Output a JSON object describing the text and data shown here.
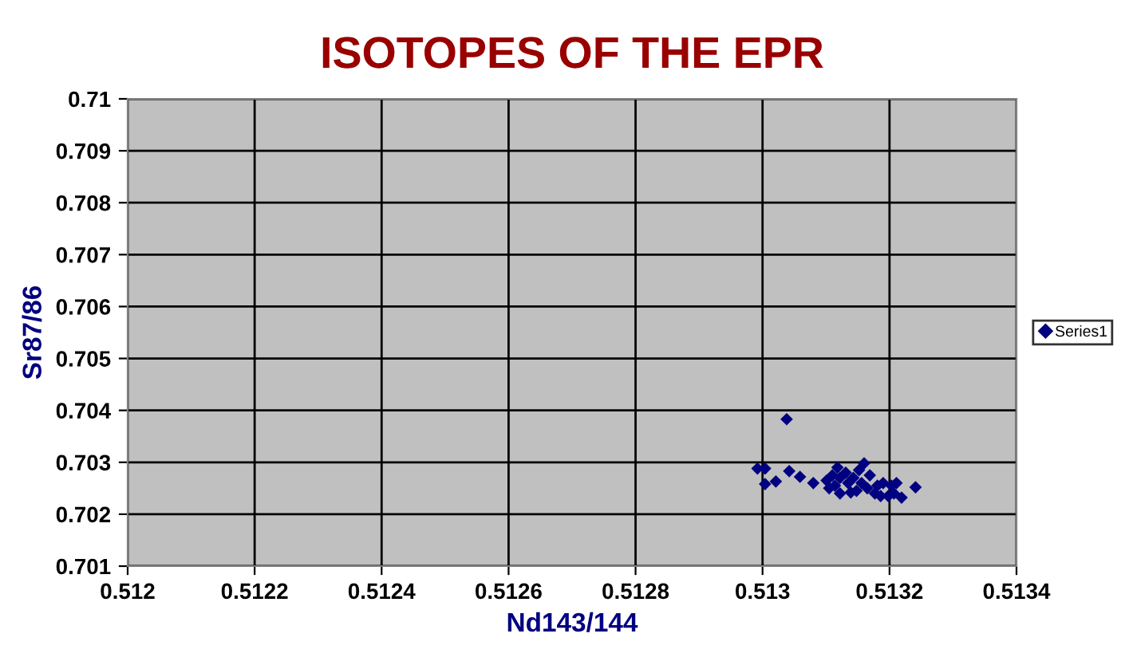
{
  "chart_data": {
    "type": "scatter",
    "title": "ISOTOPES OF THE EPR",
    "xlabel": "Nd143/144",
    "ylabel": "Sr87/86",
    "xlim": [
      0.512,
      0.5134
    ],
    "xticks": [
      0.512,
      0.5122,
      0.5124,
      0.5126,
      0.5128,
      0.513,
      0.5132,
      0.5134
    ],
    "ylim": [
      0.701,
      0.71
    ],
    "yticks": [
      0.701,
      0.702,
      0.703,
      0.704,
      0.705,
      0.706,
      0.707,
      0.708,
      0.709,
      0.71
    ],
    "grid": true,
    "legend": "right",
    "marker": "diamond",
    "series": [
      {
        "name": "Series1",
        "color": "#000080",
        "x": [
          0.513038,
          0.512992,
          0.513004,
          0.513004,
          0.513021,
          0.513042,
          0.513059,
          0.51308,
          0.513101,
          0.51311,
          0.513118,
          0.513122,
          0.513135,
          0.513143,
          0.513148,
          0.513152,
          0.51316,
          0.513156,
          0.513165,
          0.513177,
          0.513181,
          0.51319,
          0.513203,
          0.513207,
          0.513211,
          0.513219,
          0.513241,
          0.513114,
          0.513105,
          0.513131,
          0.513139,
          0.513169,
          0.513186,
          0.513198,
          0.513122
        ],
        "values": [
          0.70383,
          0.70288,
          0.70288,
          0.70258,
          0.70263,
          0.70283,
          0.70272,
          0.7026,
          0.70265,
          0.70275,
          0.7029,
          0.7027,
          0.7026,
          0.7027,
          0.70245,
          0.70285,
          0.70298,
          0.7026,
          0.7025,
          0.7024,
          0.70255,
          0.7026,
          0.70255,
          0.7024,
          0.7026,
          0.70232,
          0.70252,
          0.70255,
          0.7025,
          0.7028,
          0.70242,
          0.70275,
          0.70235,
          0.70235,
          0.7024
        ]
      }
    ]
  }
}
